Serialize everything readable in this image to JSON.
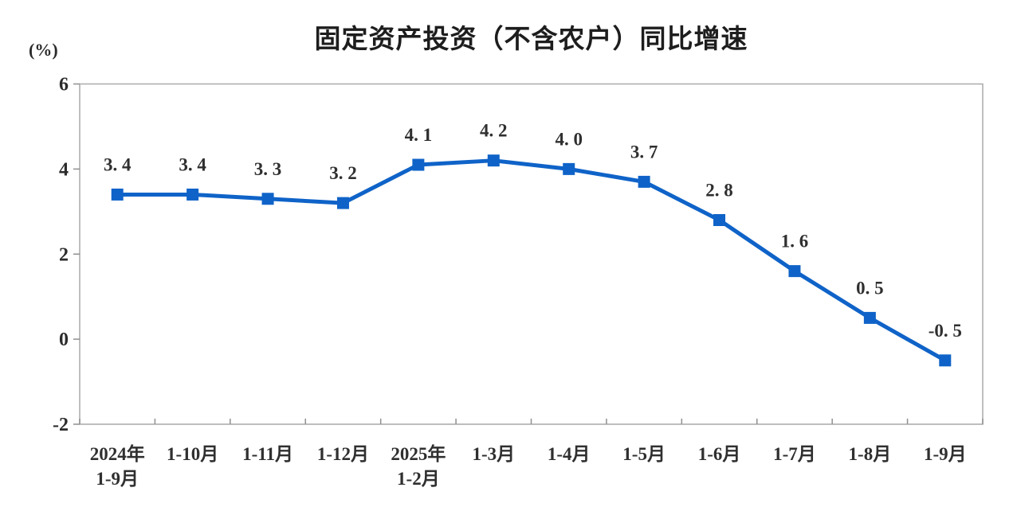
{
  "chart_data": {
    "type": "line",
    "title": "固定资产投资（不含农户）同比增速",
    "unit_label": "(%)",
    "categories": [
      "2024年\n1-9月",
      "1-10月",
      "1-11月",
      "1-12月",
      "2025年\n1-2月",
      "1-3月",
      "1-4月",
      "1-5月",
      "1-6月",
      "1-7月",
      "1-8月",
      "1-9月"
    ],
    "series": [
      {
        "name": "固定资产投资（不含农户）同比增速",
        "values": [
          3.4,
          3.4,
          3.3,
          3.2,
          4.1,
          4.2,
          4.0,
          3.7,
          2.8,
          1.6,
          0.5,
          -0.5
        ]
      }
    ],
    "data_labels": [
      "3. 4",
      "3. 4",
      "3. 3",
      "3. 2",
      "4. 1",
      "4. 2",
      "4. 0",
      "3. 7",
      "2. 8",
      "1. 6",
      "0. 5",
      "-0. 5"
    ],
    "xlabel": "",
    "ylabel": "(%)",
    "ylim": [
      -2,
      6
    ],
    "yticks": [
      6,
      4,
      2,
      0,
      -2
    ],
    "grid": false,
    "legend": "none",
    "marker": "square",
    "colors": {
      "line": "#0f63c8",
      "marker": "#0f63c8",
      "axis": "#a9a9a9",
      "tick": "#8f8f8f",
      "title": "#1d1d1d",
      "text": "#2f2f2f",
      "background": "#ffffff"
    }
  }
}
